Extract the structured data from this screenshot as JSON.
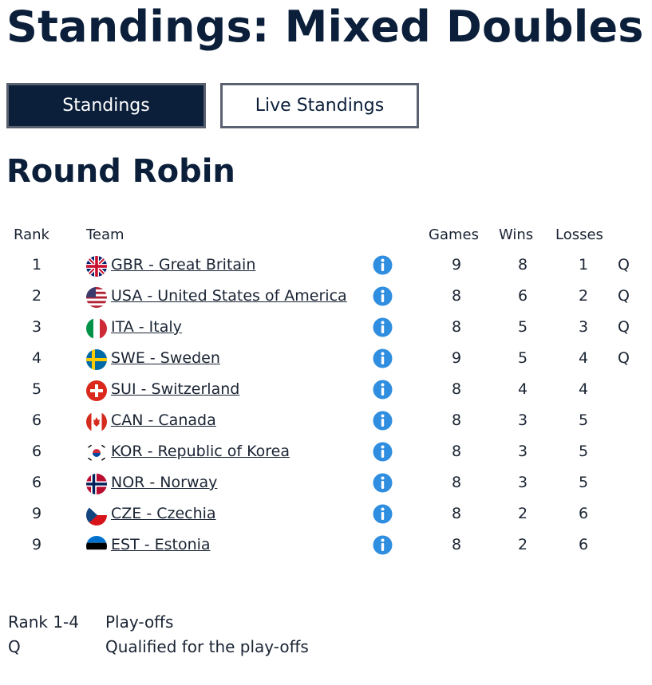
{
  "page": {
    "title": "Standings: Mixed Doubles"
  },
  "tabs": [
    {
      "label": "Standings",
      "active": true
    },
    {
      "label": "Live Standings",
      "active": false
    }
  ],
  "section": {
    "title": "Round Robin"
  },
  "table": {
    "headers": {
      "rank": "Rank",
      "team": "Team",
      "games": "Games",
      "wins": "Wins",
      "losses": "Losses"
    },
    "rows": [
      {
        "rank": "1",
        "team": "GBR - Great Britain",
        "flag": "gbr-flag-icon",
        "games": "9",
        "wins": "8",
        "losses": "1",
        "q": "Q"
      },
      {
        "rank": "2",
        "team": "USA - United States of America",
        "flag": "usa-flag-icon",
        "games": "8",
        "wins": "6",
        "losses": "2",
        "q": "Q"
      },
      {
        "rank": "3",
        "team": "ITA - Italy",
        "flag": "ita-flag-icon",
        "games": "8",
        "wins": "5",
        "losses": "3",
        "q": "Q"
      },
      {
        "rank": "4",
        "team": "SWE - Sweden",
        "flag": "swe-flag-icon",
        "games": "9",
        "wins": "5",
        "losses": "4",
        "q": "Q"
      },
      {
        "rank": "5",
        "team": "SUI - Switzerland",
        "flag": "sui-flag-icon",
        "games": "8",
        "wins": "4",
        "losses": "4",
        "q": ""
      },
      {
        "rank": "6",
        "team": "CAN - Canada",
        "flag": "can-flag-icon",
        "games": "8",
        "wins": "3",
        "losses": "5",
        "q": ""
      },
      {
        "rank": "6",
        "team": "KOR - Republic of Korea",
        "flag": "kor-flag-icon",
        "games": "8",
        "wins": "3",
        "losses": "5",
        "q": ""
      },
      {
        "rank": "6",
        "team": "NOR - Norway",
        "flag": "nor-flag-icon",
        "games": "8",
        "wins": "3",
        "losses": "5",
        "q": ""
      },
      {
        "rank": "9",
        "team": "CZE - Czechia",
        "flag": "cze-flag-icon",
        "games": "8",
        "wins": "2",
        "losses": "6",
        "q": ""
      },
      {
        "rank": "9",
        "team": "EST - Estonia",
        "flag": "est-flag-icon",
        "games": "8",
        "wins": "2",
        "losses": "6",
        "q": ""
      }
    ]
  },
  "legend": [
    {
      "key": "Rank 1-4",
      "value": "Play-offs"
    },
    {
      "key": "Q",
      "value": "Qualified for the play-offs"
    }
  ],
  "colors": {
    "navy": "#0b1f3a",
    "info_blue": "#2f8ee0"
  }
}
